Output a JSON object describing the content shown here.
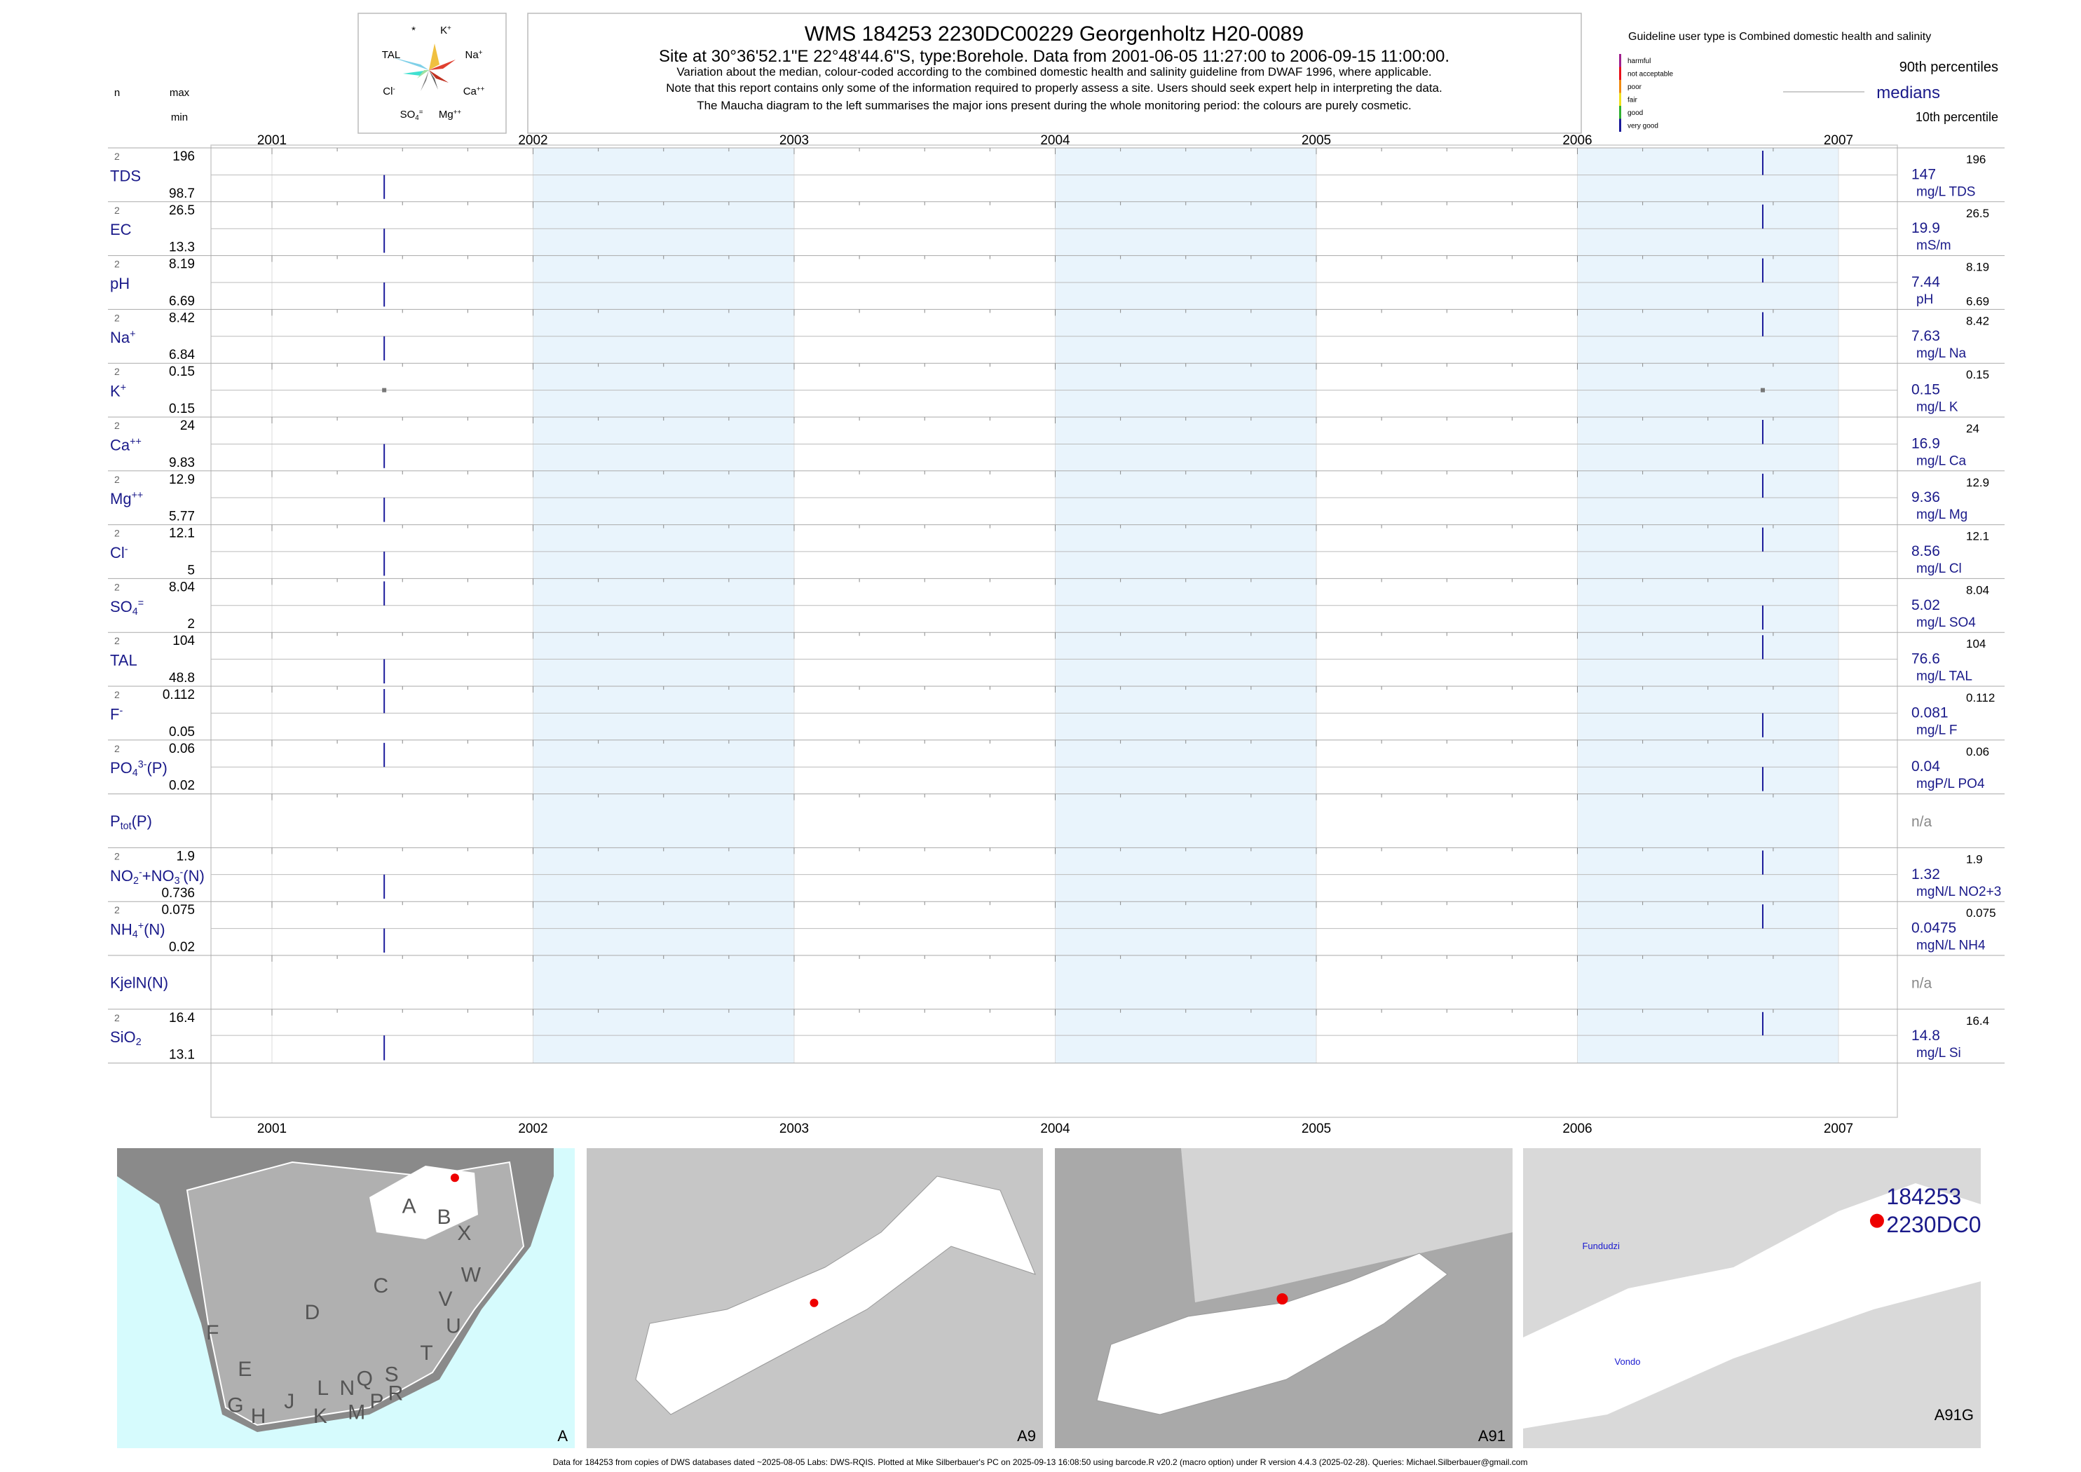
{
  "header": {
    "title": "WMS 184253 2230DC00229 Georgenholtz H20-0089",
    "site": "Site at 30°36'52.1\"E 22°48'44.6\"S, type:Borehole.  Data from 2001-06-05 11:27:00 to 2006-09-15 11:00:00.",
    "notes": [
      "Variation about the median,  colour-coded according to the combined domestic health and salinity guideline from DWAF 1996, where applicable.",
      "Note that this report contains only some of the information required to properly assess a site. Users should seek expert help in interpreting the data.",
      "The Maucha diagram to the left summarises the major ions present during the whole monitoring period: the colours are purely cosmetic."
    ]
  },
  "maucha": {
    "labels": [
      [
        "*"
      ],
      [
        "K",
        {
          "text": "+",
          "pos": "sup"
        }
      ],
      [
        "TAL"
      ],
      [
        "Na",
        {
          "text": "+",
          "pos": "sup"
        }
      ],
      [
        "Cl",
        {
          "text": "-",
          "pos": "sup"
        }
      ],
      [
        "Ca",
        {
          "text": "++",
          "pos": "sup"
        }
      ],
      [
        "SO",
        {
          "text": "4",
          "pos": "sub"
        },
        {
          "text": "=",
          "pos": "sup"
        }
      ],
      [
        "Mg",
        {
          "text": "++",
          "pos": "sup"
        }
      ]
    ]
  },
  "legend": {
    "guideline": "Guideline user type is Combined domestic health and salinity",
    "classes": [
      {
        "name": "harmful",
        "color": "#a0208e"
      },
      {
        "name": "not acceptable",
        "color": "#e8101a"
      },
      {
        "name": "poor",
        "color": "#f08a10"
      },
      {
        "name": "fair",
        "color": "#f0e020"
      },
      {
        "name": "good",
        "color": "#30b030"
      },
      {
        "name": "very good",
        "color": "#1a1a9a"
      }
    ],
    "p90": "90th percentiles",
    "medians": "medians",
    "p10": "10th percentile"
  },
  "columns": {
    "n": "n",
    "max": "max",
    "min": "min"
  },
  "years": [
    2001,
    2002,
    2003,
    2004,
    2005,
    2006,
    2007
  ],
  "sample_years": [
    2001.43,
    2006.71
  ],
  "variables": [
    {
      "label": [
        "TDS"
      ],
      "n": 2,
      "max": 196,
      "min": 98.7,
      "median": 147,
      "unit": "mg/L TDS",
      "values": [
        98.7,
        196
      ]
    },
    {
      "label": [
        "EC"
      ],
      "n": 2,
      "max": 26.5,
      "min": 13.3,
      "median": 19.9,
      "unit": "mS/m",
      "values": [
        13.3,
        26.5
      ]
    },
    {
      "label": [
        "pH"
      ],
      "n": 2,
      "max": 8.19,
      "min": 6.69,
      "median": 7.44,
      "unit": "pH",
      "values": [
        6.69,
        8.19
      ],
      "min_right": true
    },
    {
      "label": [
        "Na",
        {
          "text": "+",
          "pos": "sup"
        }
      ],
      "n": 2,
      "max": 8.42,
      "min": 6.84,
      "median": 7.63,
      "unit": "mg/L Na",
      "values": [
        6.84,
        8.42
      ]
    },
    {
      "label": [
        "K",
        {
          "text": "+",
          "pos": "sup"
        }
      ],
      "n": 2,
      "max": 0.15,
      "min": 0.15,
      "median": 0.15,
      "unit": "mg/L K",
      "values": [
        0.15,
        0.15
      ]
    },
    {
      "label": [
        "Ca",
        {
          "text": "++",
          "pos": "sup"
        }
      ],
      "n": 2,
      "max": 24,
      "min": 9.83,
      "median": 16.9,
      "unit": "mg/L Ca",
      "values": [
        9.83,
        24
      ]
    },
    {
      "label": [
        "Mg",
        {
          "text": "++",
          "pos": "sup"
        }
      ],
      "n": 2,
      "max": 12.9,
      "min": 5.77,
      "median": 9.36,
      "unit": "mg/L Mg",
      "values": [
        5.77,
        12.9
      ]
    },
    {
      "label": [
        "Cl",
        {
          "text": "-",
          "pos": "sup"
        }
      ],
      "n": 2,
      "max": 12.1,
      "min": 5,
      "median": 8.56,
      "unit": "mg/L Cl",
      "values": [
        5,
        12.1
      ]
    },
    {
      "label": [
        "SO",
        {
          "text": "4",
          "pos": "sub"
        },
        {
          "text": "=",
          "pos": "sup"
        }
      ],
      "n": 2,
      "max": 8.04,
      "min": 2,
      "median": 5.02,
      "unit": "mg/L SO4",
      "values": [
        8.04,
        2
      ]
    },
    {
      "label": [
        "TAL"
      ],
      "n": 2,
      "max": 104,
      "min": 48.8,
      "median": 76.6,
      "unit": "mg/L TAL",
      "values": [
        48.8,
        104
      ]
    },
    {
      "label": [
        "F",
        {
          "text": "-",
          "pos": "sup"
        }
      ],
      "n": 2,
      "max": 0.112,
      "min": 0.05,
      "median": 0.081,
      "unit": "mg/L F",
      "values": [
        0.112,
        0.05
      ]
    },
    {
      "label": [
        "PO",
        {
          "text": "4",
          "pos": "sub"
        },
        {
          "text": "3-",
          "pos": "sup"
        },
        "(P)"
      ],
      "n": 2,
      "max": 0.06,
      "min": 0.02,
      "median": 0.04,
      "unit": "mgP/L PO4",
      "values": [
        0.06,
        0.02
      ]
    },
    {
      "label": [
        "P",
        {
          "text": "tot",
          "pos": "sub"
        },
        "(P)"
      ],
      "median": "n/a"
    },
    {
      "label": [
        "NO",
        {
          "text": "2",
          "pos": "sub"
        },
        {
          "text": "-",
          "pos": "sup"
        },
        "+NO",
        {
          "text": "3",
          "pos": "sub"
        },
        {
          "text": "-",
          "pos": "sup"
        },
        "(N)"
      ],
      "n": 2,
      "max": 1.9,
      "min": 0.736,
      "median": 1.32,
      "unit": "mgN/L NO2+3",
      "values": [
        0.736,
        1.9
      ]
    },
    {
      "label": [
        "NH",
        {
          "text": "4",
          "pos": "sub"
        },
        {
          "text": "+",
          "pos": "sup"
        },
        "(N)"
      ],
      "n": 2,
      "max": 0.075,
      "min": 0.02,
      "median": 0.0475,
      "unit": "mgN/L NH4",
      "values": [
        0.02,
        0.075
      ]
    },
    {
      "label": [
        "KjelN(N)"
      ],
      "median": "n/a"
    },
    {
      "label": [
        "SiO",
        {
          "text": "2",
          "pos": "sub"
        }
      ],
      "n": 2,
      "max": 16.4,
      "min": 13.1,
      "median": 14.8,
      "unit": "mg/L Si",
      "values": [
        13.1,
        16.4
      ]
    }
  ],
  "maps": [
    {
      "label": "A",
      "regions": [
        "A",
        "B",
        "X",
        "W",
        "C",
        "V",
        "U",
        "D",
        "F",
        "E",
        "T",
        "S",
        "R",
        "Q",
        "N",
        "P",
        "L",
        "M",
        "J",
        "K",
        "H",
        "G"
      ]
    },
    {
      "label": "A9"
    },
    {
      "label": "A91"
    },
    {
      "label": "A91G",
      "site_labels": [
        "184253",
        "2230DC0"
      ],
      "places": [
        "Fundudzi",
        "Vondo"
      ]
    }
  ],
  "footer": "Data for 184253 from copies of DWS databases dated ~2025-08-05 Labs: DWS-RQIS. Plotted at Mike Silberbauer's PC on 2025-09-13 16:08:50 using barcode.R v20.2 (macro option) under R version 4.4.3 (2025-02-28). Queries: Michael.Silberbauer@gmail.com"
}
